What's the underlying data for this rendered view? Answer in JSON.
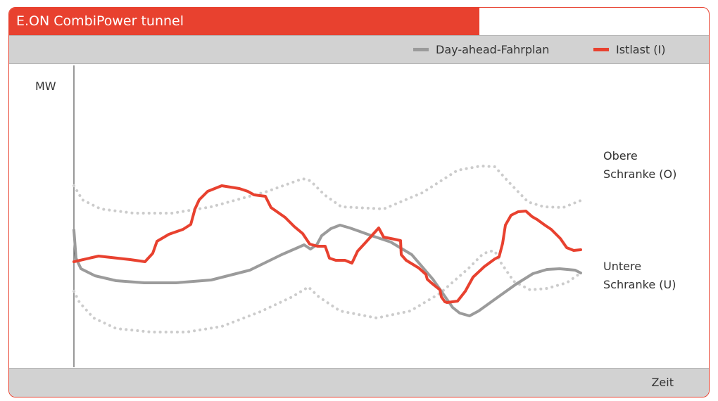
{
  "header": {
    "title": "E.ON CombiPower tunnel"
  },
  "chart_data": {
    "type": "line",
    "title": "E.ON CombiPower tunnel",
    "ylabel": "MW",
    "xlabel": "Zeit",
    "legend_position": "top-right",
    "colors": {
      "accent": "#e8412f",
      "plan": "#9b9b9b",
      "bound": "#cccccc"
    },
    "series": [
      {
        "name": "Day-ahead-Fahrplan",
        "style": "solid",
        "color": "#9b9b9b",
        "points": [
          [
            0,
            195
          ],
          [
            3,
            155
          ],
          [
            10,
            140
          ],
          [
            30,
            130
          ],
          [
            60,
            123
          ],
          [
            100,
            120
          ],
          [
            145,
            120
          ],
          [
            195,
            124
          ],
          [
            250,
            138
          ],
          [
            295,
            160
          ],
          [
            318,
            170
          ],
          [
            327,
            174
          ],
          [
            336,
            168
          ],
          [
            345,
            174
          ],
          [
            352,
            187
          ],
          [
            365,
            197
          ],
          [
            378,
            202
          ],
          [
            392,
            198
          ],
          [
            420,
            188
          ],
          [
            450,
            178
          ],
          [
            480,
            160
          ],
          [
            510,
            125
          ],
          [
            538,
            85
          ],
          [
            548,
            77
          ],
          [
            562,
            73
          ],
          [
            575,
            80
          ],
          [
            600,
            98
          ],
          [
            628,
            118
          ],
          [
            652,
            133
          ],
          [
            672,
            139
          ],
          [
            690,
            140
          ],
          [
            712,
            138
          ],
          [
            720,
            134
          ]
        ]
      },
      {
        "name": "Istlast (I)",
        "style": "solid",
        "color": "#e8412f",
        "points": [
          [
            0,
            150
          ],
          [
            35,
            158
          ],
          [
            80,
            153
          ],
          [
            101,
            150
          ],
          [
            112,
            162
          ],
          [
            118,
            179
          ],
          [
            135,
            189
          ],
          [
            155,
            196
          ],
          [
            166,
            203
          ],
          [
            172,
            225
          ],
          [
            178,
            238
          ],
          [
            190,
            250
          ],
          [
            210,
            258
          ],
          [
            235,
            254
          ],
          [
            247,
            250
          ],
          [
            256,
            245
          ],
          [
            272,
            243
          ],
          [
            280,
            227
          ],
          [
            300,
            213
          ],
          [
            313,
            200
          ],
          [
            325,
            190
          ],
          [
            335,
            175
          ],
          [
            346,
            172
          ],
          [
            357,
            172
          ],
          [
            363,
            155
          ],
          [
            372,
            152
          ],
          [
            385,
            152
          ],
          [
            395,
            148
          ],
          [
            403,
            165
          ],
          [
            415,
            178
          ],
          [
            433,
            198
          ],
          [
            440,
            185
          ],
          [
            455,
            182
          ],
          [
            464,
            180
          ],
          [
            465,
            160
          ],
          [
            472,
            152
          ],
          [
            490,
            141
          ],
          [
            500,
            132
          ],
          [
            502,
            125
          ],
          [
            510,
            118
          ],
          [
            520,
            110
          ],
          [
            522,
            100
          ],
          [
            527,
            93
          ],
          [
            530,
            92
          ],
          [
            545,
            94
          ],
          [
            556,
            108
          ],
          [
            567,
            128
          ],
          [
            583,
            143
          ],
          [
            598,
            154
          ],
          [
            604,
            157
          ],
          [
            609,
            176
          ],
          [
            613,
            202
          ],
          [
            621,
            216
          ],
          [
            631,
            221
          ],
          [
            642,
            222
          ],
          [
            651,
            214
          ],
          [
            658,
            210
          ],
          [
            669,
            202
          ],
          [
            678,
            196
          ],
          [
            691,
            183
          ],
          [
            700,
            170
          ],
          [
            710,
            166
          ],
          [
            720,
            167
          ]
        ]
      },
      {
        "name": "Obere Schranke (O)",
        "style": "dotted",
        "color": "#cccccc",
        "points": [
          [
            0,
            258
          ],
          [
            12,
            238
          ],
          [
            38,
            225
          ],
          [
            85,
            219
          ],
          [
            140,
            219
          ],
          [
            195,
            228
          ],
          [
            275,
            250
          ],
          [
            325,
            268
          ],
          [
            336,
            265
          ],
          [
            356,
            245
          ],
          [
            380,
            228
          ],
          [
            440,
            225
          ],
          [
            495,
            248
          ],
          [
            545,
            280
          ],
          [
            578,
            286
          ],
          [
            598,
            285
          ],
          [
            617,
            264
          ],
          [
            645,
            235
          ],
          [
            668,
            228
          ],
          [
            695,
            227
          ],
          [
            720,
            237
          ]
        ]
      },
      {
        "name": "Untere Schranke (U)",
        "style": "dotted",
        "color": "#cccccc",
        "points": [
          [
            0,
            108
          ],
          [
            8,
            92
          ],
          [
            28,
            70
          ],
          [
            60,
            55
          ],
          [
            110,
            50
          ],
          [
            160,
            50
          ],
          [
            210,
            58
          ],
          [
            265,
            79
          ],
          [
            310,
            100
          ],
          [
            333,
            114
          ],
          [
            348,
            100
          ],
          [
            378,
            80
          ],
          [
            430,
            70
          ],
          [
            478,
            80
          ],
          [
            520,
            105
          ],
          [
            560,
            140
          ],
          [
            580,
            160
          ],
          [
            590,
            165
          ],
          [
            598,
            165
          ],
          [
            607,
            148
          ],
          [
            625,
            122
          ],
          [
            648,
            110
          ],
          [
            672,
            112
          ],
          [
            700,
            120
          ],
          [
            720,
            134
          ]
        ]
      }
    ],
    "annotations": [
      {
        "lines": [
          "Obere",
          "Schranke (O)"
        ]
      },
      {
        "lines": [
          "Untere",
          "Schranke (U)"
        ]
      }
    ]
  },
  "ann": {
    "upper_1": "Obere",
    "upper_2": "Schranke (O)",
    "lower_1": "Untere",
    "lower_2": "Schranke (U)"
  }
}
